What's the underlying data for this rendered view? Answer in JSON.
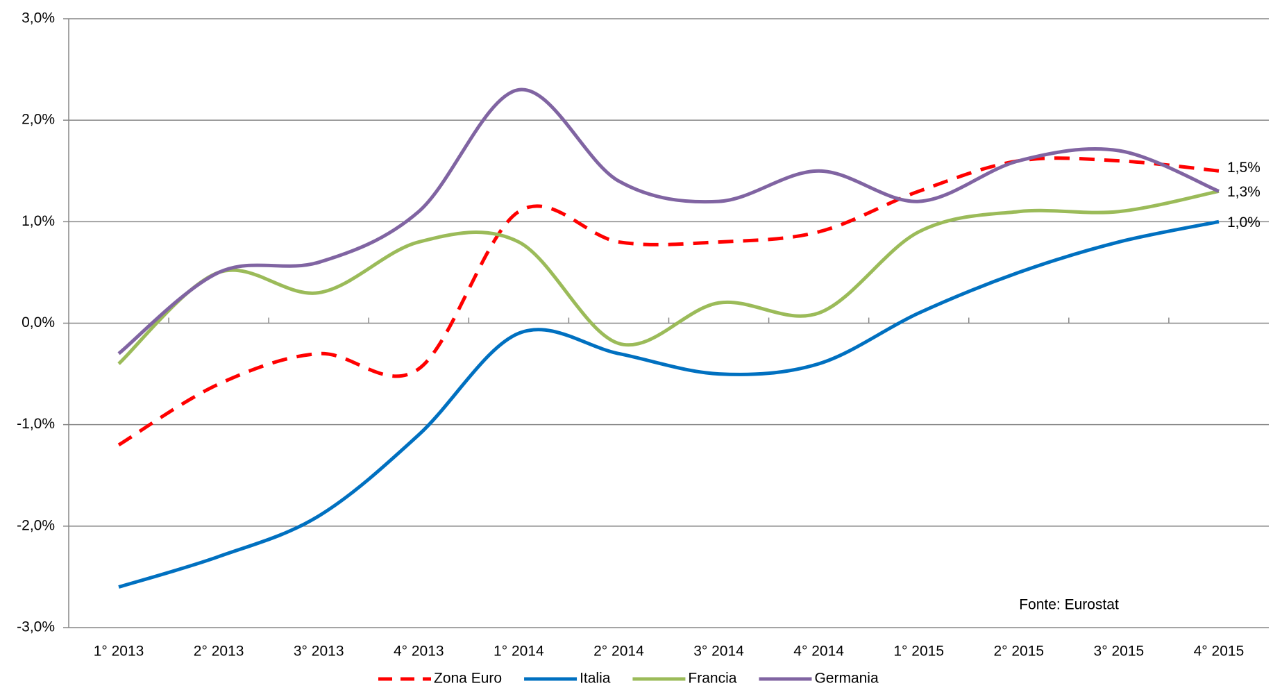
{
  "chart_data": {
    "type": "line",
    "categories": [
      "1° 2013",
      "2° 2013",
      "3° 2013",
      "4° 2013",
      "1° 2014",
      "2° 2014",
      "3° 2014",
      "4° 2014",
      "1° 2015",
      "2° 2015",
      "3° 2015",
      "4° 2015"
    ],
    "series": [
      {
        "name": "Zona Euro",
        "color": "#ff0000",
        "dashed": true,
        "values": [
          -1.2,
          -0.6,
          -0.3,
          -0.45,
          1.1,
          0.8,
          0.8,
          0.9,
          1.3,
          1.6,
          1.6,
          1.5
        ],
        "value_labels": [
          null,
          null,
          null,
          null,
          null,
          null,
          null,
          null,
          null,
          null,
          null,
          "1,5%"
        ]
      },
      {
        "name": "Italia",
        "color": "#0070c0",
        "values": [
          -2.6,
          -2.3,
          -1.9,
          -1.1,
          -0.1,
          -0.3,
          -0.5,
          -0.4,
          0.1,
          0.5,
          0.8,
          1.0
        ],
        "value_labels": [
          null,
          null,
          null,
          null,
          null,
          null,
          null,
          null,
          null,
          null,
          null,
          "1,0%"
        ]
      },
      {
        "name": "Francia",
        "color": "#9bbb59",
        "values": [
          -0.4,
          0.5,
          0.3,
          0.8,
          0.8,
          -0.2,
          0.2,
          0.1,
          0.9,
          1.1,
          1.1,
          1.3
        ]
      },
      {
        "name": "Germania",
        "color": "#8064a2",
        "values": [
          -0.3,
          0.5,
          0.6,
          1.1,
          2.3,
          1.4,
          1.2,
          1.5,
          1.2,
          1.6,
          1.7,
          1.3
        ],
        "value_labels": [
          null,
          null,
          null,
          null,
          null,
          null,
          null,
          null,
          null,
          null,
          null,
          "1,3%"
        ]
      }
    ],
    "ylim": [
      -3,
      3
    ],
    "yticks": [
      {
        "value": -3,
        "label": "-3,0%"
      },
      {
        "value": -2,
        "label": "-2,0%"
      },
      {
        "value": -1,
        "label": "-1,0%"
      },
      {
        "value": 0,
        "label": "0,0%"
      },
      {
        "value": 1,
        "label": "1,0%"
      },
      {
        "value": 2,
        "label": "2,0%"
      },
      {
        "value": 3,
        "label": "3,0%"
      }
    ],
    "grid": true,
    "annotation": "Fonte: Eurostat",
    "legend": "bottom"
  }
}
